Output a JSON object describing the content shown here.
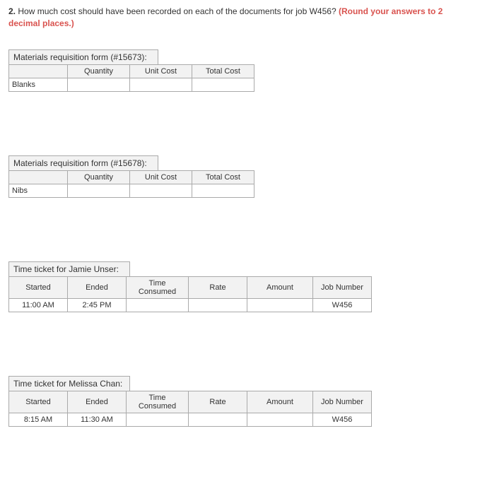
{
  "question": {
    "number": "2.",
    "text": "How much cost should have been recorded on each of the documents for job W456? ",
    "emph": "(Round your answers to 2 decimal places.)"
  },
  "forms": {
    "req1": {
      "title": "Materials requisition form (#15673):",
      "headers": {
        "blank": "",
        "qty": "Quantity",
        "unit": "Unit Cost",
        "total": "Total Cost"
      },
      "rowlabel": "Blanks",
      "cells": {
        "qty": "",
        "unit": "",
        "total": ""
      }
    },
    "req2": {
      "title": "Materials requisition form (#15678):",
      "headers": {
        "blank": "",
        "qty": "Quantity",
        "unit": "Unit Cost",
        "total": "Total Cost"
      },
      "rowlabel": "Nibs",
      "cells": {
        "qty": "",
        "unit": "",
        "total": ""
      }
    },
    "time1": {
      "title": "Time ticket for Jamie Unser:",
      "headers": {
        "started": "Started",
        "ended": "Ended",
        "time": "Time Consumed",
        "rate": "Rate",
        "amount": "Amount",
        "job": "Job Number"
      },
      "row": {
        "started": "11:00 AM",
        "ended": "2:45 PM",
        "time": "",
        "rate": "",
        "amount": "",
        "job": "W456"
      }
    },
    "time2": {
      "title": "Time ticket for Melissa Chan:",
      "headers": {
        "started": "Started",
        "ended": "Ended",
        "time": "Time Consumed",
        "rate": "Rate",
        "amount": "Amount",
        "job": "Job Number"
      },
      "row": {
        "started": "8:15 AM",
        "ended": "11:30 AM",
        "time": "",
        "rate": "",
        "amount": "",
        "job": "W456"
      }
    }
  },
  "style": {
    "text_color": "#333333",
    "border_color": "#aaaaaa",
    "header_bg": "#f2f2f2",
    "background": "#ffffff",
    "emph_color": "#d9534f",
    "font_size_body": 12,
    "font_size_table": 11
  }
}
